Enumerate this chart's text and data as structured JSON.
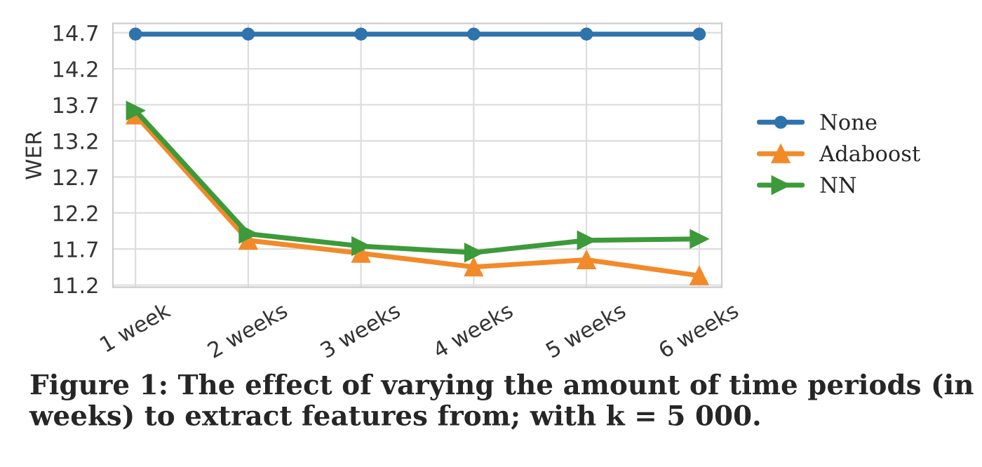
{
  "chart_data": {
    "type": "line",
    "categories": [
      "1 week",
      "2 weeks",
      "3 weeks",
      "4 weeks",
      "5 weeks",
      "6 weeks"
    ],
    "ylabel": "WER",
    "ylim": [
      11.17,
      14.83
    ],
    "yticks": [
      11.2,
      11.7,
      12.2,
      12.7,
      13.2,
      13.7,
      14.2,
      14.7
    ],
    "grid": true,
    "legend": "right",
    "series": [
      {
        "name": "None",
        "color": "#2f73ad",
        "marker": "circle",
        "values": [
          14.68,
          14.68,
          14.68,
          14.68,
          14.68,
          14.68
        ]
      },
      {
        "name": "Adaboost",
        "color": "#f28a2a",
        "marker": "triangle",
        "values": [
          13.56,
          11.82,
          11.64,
          11.45,
          11.55,
          11.33
        ]
      },
      {
        "name": "NN",
        "color": "#3d9a3a",
        "marker": "triangle-right",
        "values": [
          13.62,
          11.91,
          11.74,
          11.65,
          11.82,
          11.84
        ]
      }
    ],
    "annotations": [
      "Figure 1: The effect of varying the amount of time periods (in weeks) to extract features from; with k = 5 000."
    ]
  }
}
